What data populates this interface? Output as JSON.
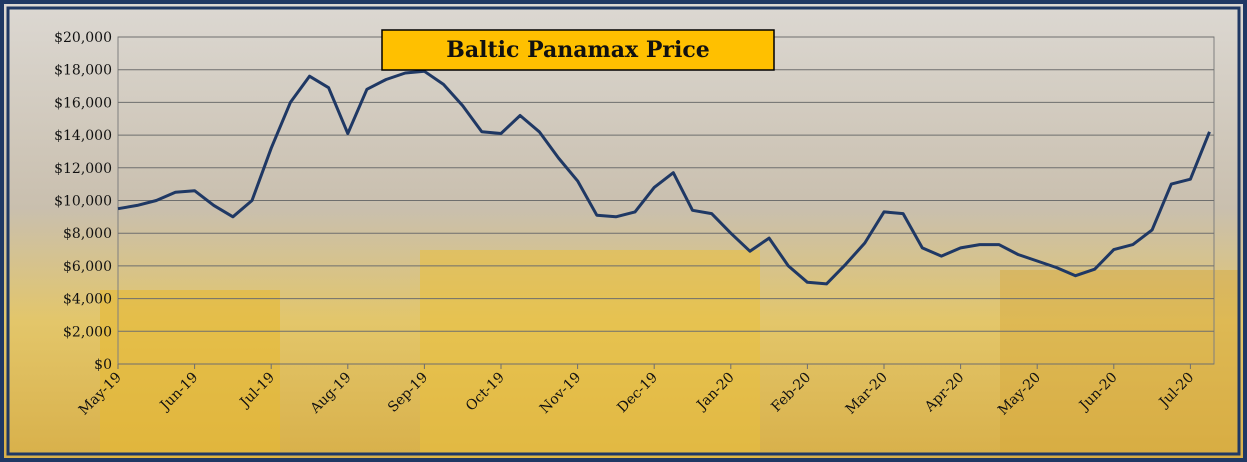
{
  "chart_data": {
    "type": "line",
    "title": "Baltic Panamax Price",
    "categories": [
      "May-19",
      null,
      null,
      null,
      "Jun-19",
      null,
      null,
      null,
      "Jul-19",
      null,
      null,
      null,
      "Aug-19",
      null,
      null,
      null,
      "Sep-19",
      null,
      null,
      null,
      "Oct-19",
      null,
      null,
      null,
      "Nov-19",
      null,
      null,
      null,
      "Dec-19",
      null,
      null,
      null,
      "Jan-20",
      null,
      null,
      null,
      "Feb-20",
      null,
      null,
      null,
      "Mar-20",
      null,
      null,
      null,
      "Apr-20",
      null,
      null,
      null,
      "May-20",
      null,
      null,
      null,
      "Jun-20",
      null,
      null,
      null,
      "Jul-20",
      null
    ],
    "series": [
      {
        "name": "Baltic Panamax Price",
        "color": "#1f3864",
        "values": [
          9500,
          9700,
          10000,
          10500,
          10600,
          9700,
          9000,
          10000,
          13200,
          16000,
          17600,
          16900,
          14100,
          16800,
          17400,
          17800,
          17900,
          17100,
          15800,
          14200,
          14100,
          15200,
          14200,
          12600,
          11200,
          9100,
          9000,
          9300,
          10800,
          11700,
          9400,
          9200,
          8000,
          6900,
          7700,
          6000,
          5000,
          4900,
          6100,
          7400,
          9300,
          9200,
          7100,
          6600,
          7100,
          7300,
          7300,
          6700,
          6300,
          5900,
          5400,
          5800,
          7000,
          7300,
          8200,
          11000,
          11300,
          14200
        ]
      }
    ],
    "ylim": [
      0,
      20000
    ],
    "yticks": [
      {
        "value": 0,
        "label": "$0"
      },
      {
        "value": 2000,
        "label": "$2,000"
      },
      {
        "value": 4000,
        "label": "$4,000"
      },
      {
        "value": 6000,
        "label": "$6,000"
      },
      {
        "value": 8000,
        "label": "$8,000"
      },
      {
        "value": 10000,
        "label": "$10,000"
      },
      {
        "value": 12000,
        "label": "$12,000"
      },
      {
        "value": 14000,
        "label": "$14,000"
      },
      {
        "value": 16000,
        "label": "$16,000"
      },
      {
        "value": 18000,
        "label": "$18,000"
      },
      {
        "value": 20000,
        "label": "$20,000"
      }
    ],
    "grid": true
  }
}
